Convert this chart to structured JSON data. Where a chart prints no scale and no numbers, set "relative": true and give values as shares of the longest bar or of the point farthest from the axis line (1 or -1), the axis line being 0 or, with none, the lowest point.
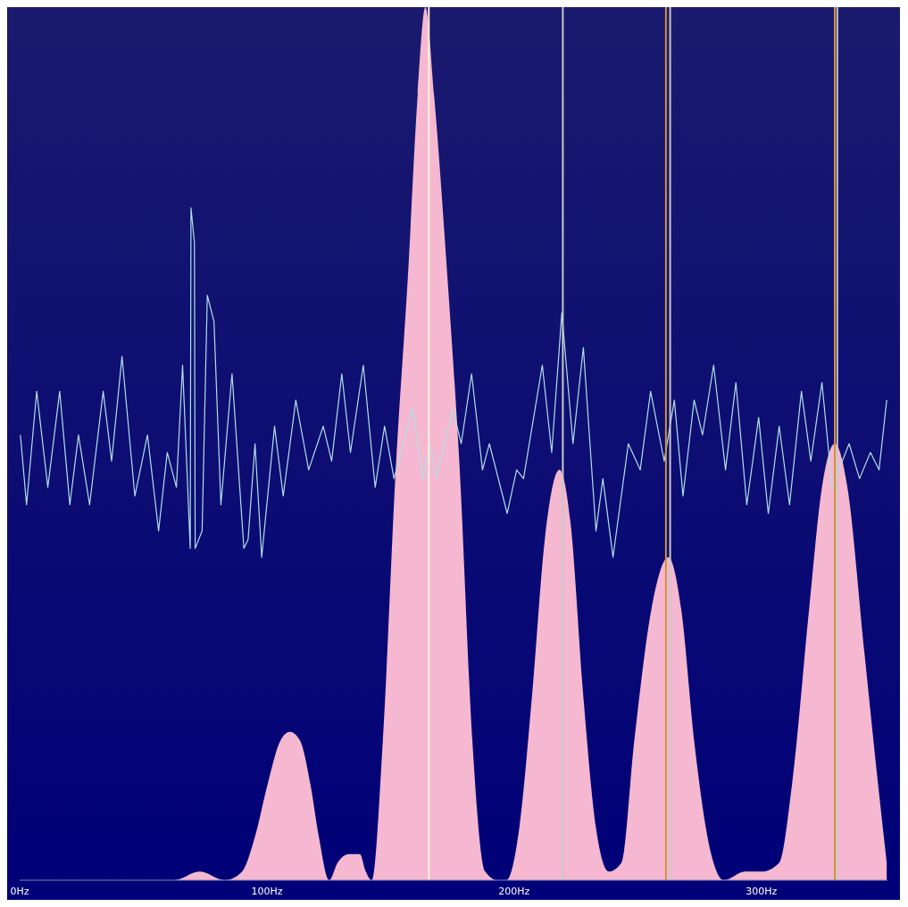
{
  "chart_data": {
    "type": "area",
    "relative": true,
    "xlim": [
      0,
      351
    ],
    "xticks": [
      {
        "value": 0,
        "label": "0Hz"
      },
      {
        "value": 100,
        "label": "100Hz"
      },
      {
        "value": 200,
        "label": "200Hz"
      },
      {
        "value": 300,
        "label": "300Hz"
      }
    ],
    "series": [
      {
        "color": "#f5b8d0",
        "x": [
          0.3,
          17.6,
          34.8,
          52.1,
          62.4,
          72.8,
          83.1,
          90.0,
          95.2,
          100.3,
          105.5,
          109.3,
          113.4,
          117.6,
          121.0,
          125.2,
          128.6,
          133.1,
          137.6,
          140.0,
          142.4,
          146.9,
          152.1,
          157.2,
          161.0,
          164.1,
          167.6,
          172.8,
          178.0,
          183.1,
          188.3,
          193.4,
          196.9,
          202.1,
          207.2,
          212.4,
          218.3,
          222.8,
          228.0,
          233.1,
          238.3,
          243.4,
          248.6,
          255.5,
          262.4,
          267.6,
          272.8,
          279.7,
          284.8,
          293.4,
          300.3,
          307.2,
          312.4,
          319.3,
          324.5,
          329.7,
          334.8,
          341.7,
          347.2,
          350.7
        ],
        "values": [
          0,
          0,
          0,
          0,
          0,
          0.01,
          0,
          0.01,
          0.05,
          0.11,
          0.16,
          0.17,
          0.16,
          0.11,
          0.05,
          0,
          0.02,
          0.03,
          0.03,
          0.01,
          0,
          0.16,
          0.47,
          0.7,
          0.9,
          1,
          0.9,
          0.7,
          0.47,
          0.16,
          0.01,
          0,
          0,
          0.06,
          0.21,
          0.39,
          0.47,
          0.41,
          0.21,
          0.06,
          0.01,
          0.02,
          0.16,
          0.31,
          0.37,
          0.31,
          0.16,
          0.03,
          0,
          0.01,
          0.01,
          0.02,
          0.11,
          0.31,
          0.45,
          0.5,
          0.45,
          0.26,
          0.11,
          0.02
        ]
      },
      {
        "type": "line",
        "color": "#b0e0e6",
        "x": [
          0.3,
          2.8,
          6.9,
          11.4,
          16.2,
          20.3,
          23.8,
          28.3,
          33.8,
          37.2,
          41.4,
          46.6,
          51.7,
          56.2,
          59.7,
          63.4,
          65.9,
          69.0,
          69.3,
          70.7,
          71.0,
          73.8,
          75.9,
          78.6,
          81.4,
          85.9,
          90.7,
          92.4,
          95.2,
          97.9,
          103.1,
          106.6,
          111.7,
          116.9,
          122.8,
          126.2,
          130.3,
          133.8,
          139.0,
          143.8,
          147.6,
          151.4,
          159.0,
          163.1,
          165.9,
          168.6,
          175.2,
          178.6,
          182.8,
          187.2,
          190.0,
          197.2,
          201.0,
          203.8,
          211.4,
          215.2,
          219.3,
          223.8,
          228.0,
          233.1,
          235.9,
          240.0,
          246.2,
          251.0,
          255.2,
          260.7,
          264.8,
          268.3,
          272.8,
          276.2,
          280.7,
          285.5,
          289.7,
          294.1,
          298.9,
          302.8,
          307.2,
          311.4,
          316.2,
          320.0,
          324.5,
          328.6,
          335.5,
          339.7,
          344.1,
          347.6,
          350.7
        ],
        "values": [
          0.51,
          0.43,
          0.56,
          0.45,
          0.56,
          0.43,
          0.51,
          0.43,
          0.56,
          0.48,
          0.6,
          0.44,
          0.51,
          0.4,
          0.49,
          0.45,
          0.59,
          0.38,
          0.77,
          0.73,
          0.38,
          0.4,
          0.67,
          0.64,
          0.43,
          0.58,
          0.38,
          0.39,
          0.5,
          0.37,
          0.52,
          0.44,
          0.55,
          0.47,
          0.52,
          0.48,
          0.58,
          0.49,
          0.59,
          0.45,
          0.52,
          0.46,
          0.54,
          0.46,
          0.5,
          0.46,
          0.54,
          0.5,
          0.58,
          0.47,
          0.5,
          0.42,
          0.47,
          0.46,
          0.59,
          0.49,
          0.65,
          0.5,
          0.61,
          0.4,
          0.46,
          0.37,
          0.5,
          0.47,
          0.56,
          0.48,
          0.55,
          0.44,
          0.55,
          0.51,
          0.59,
          0.47,
          0.57,
          0.43,
          0.53,
          0.42,
          0.52,
          0.43,
          0.56,
          0.48,
          0.57,
          0.45,
          0.5,
          0.46,
          0.49,
          0.47,
          0.55
        ]
      }
    ],
    "ref_lines": [
      {
        "axis": "x",
        "value": 165.5,
        "color": "#fff0dc"
      },
      {
        "axis": "x",
        "value": 219.7,
        "color": "#c8c8c8"
      },
      {
        "axis": "x",
        "value": 261.4,
        "color": "#d4903a"
      },
      {
        "axis": "x",
        "value": 263.1,
        "color": "#c8c8c8"
      },
      {
        "axis": "x",
        "value": 329.7,
        "color": "#d4903a"
      },
      {
        "axis": "x",
        "value": 330.7,
        "color": "#c8c8c8"
      }
    ]
  }
}
